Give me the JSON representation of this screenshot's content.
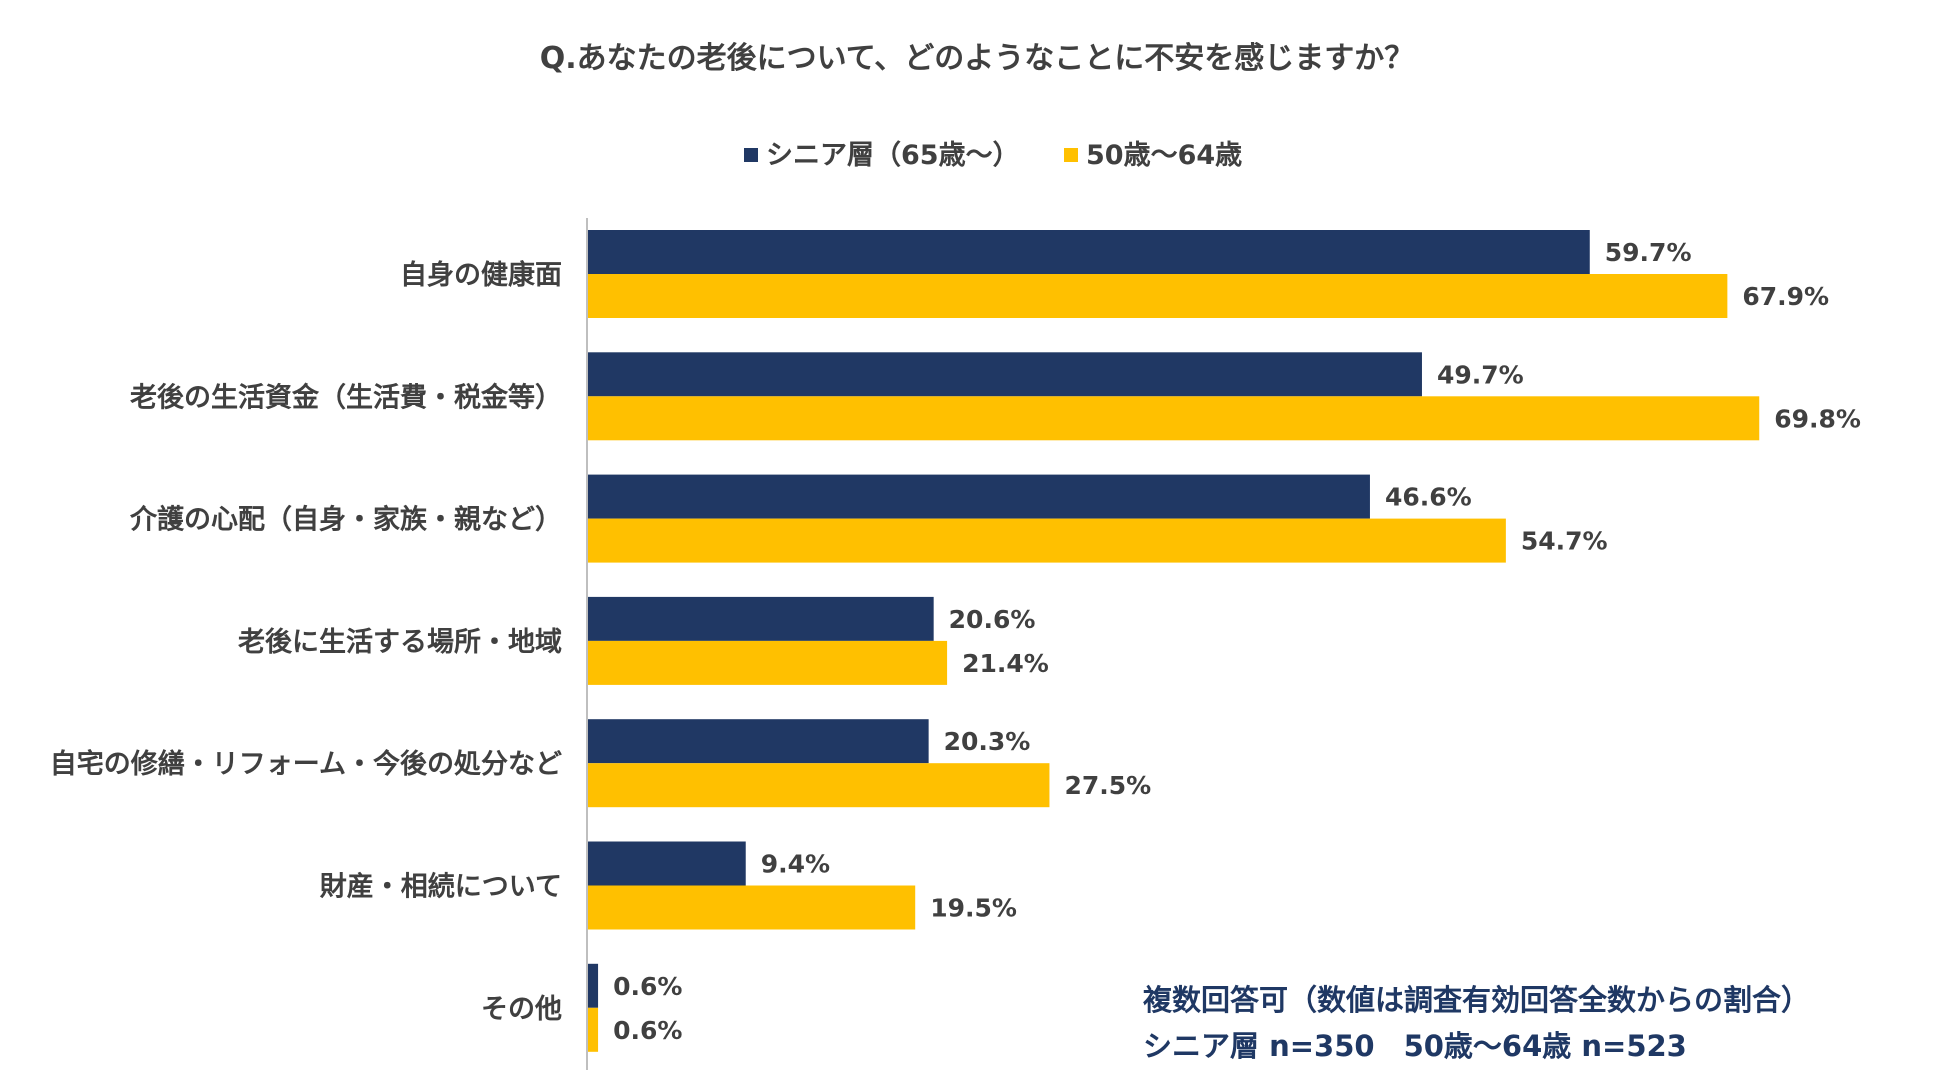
{
  "chart_data": {
    "type": "bar",
    "orientation": "horizontal",
    "title": "Q.あなたの老後について、どのようなことに不安を感じますか？",
    "categories": [
      "自身の健康面",
      "老後の生活資金（生活費・税金等）",
      "介護の心配（自身・家族・親など）",
      "老後に生活する場所・地域",
      "自宅の修繕・リフォーム・今後の処分など",
      "財産・相続について",
      "その他"
    ],
    "series": [
      {
        "name": "シニア層（65歳～）",
        "color": "#203864",
        "values": [
          59.7,
          49.7,
          46.6,
          20.6,
          20.3,
          9.4,
          0.6
        ],
        "labels": [
          "59.7%",
          "49.7%",
          "46.6%",
          "20.6%",
          "20.3%",
          "9.4%",
          "0.6%"
        ]
      },
      {
        "name": "50歳～64歳",
        "color": "#ffc000",
        "values": [
          67.9,
          69.8,
          54.7,
          21.4,
          27.5,
          19.5,
          0.6
        ],
        "labels": [
          "67.9%",
          "69.8%",
          "54.7%",
          "21.4%",
          "27.5%",
          "19.5%",
          "0.6%"
        ]
      }
    ],
    "xlim": [
      0,
      100
    ],
    "xlabel": "",
    "ylabel": "",
    "grid": false,
    "legend_position": "top",
    "notes": [
      "複数回答可（数値は調査有効回答全数からの割合）",
      "シニア層 n=350　50歳～64歳 n=523"
    ]
  }
}
